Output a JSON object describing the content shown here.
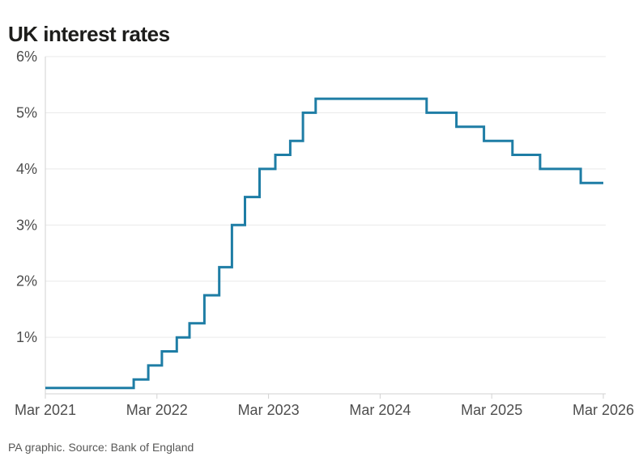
{
  "title": "UK interest rates",
  "source": "PA graphic. Source: Bank of England",
  "colors": {
    "line": "#1e7da5",
    "grid": "#e9e9e9",
    "axis": "#d2d2d2",
    "tick_label": "#4d4d4d",
    "title_text": "#1d1d1b",
    "footer_text": "#575756",
    "background": "#ffffff"
  },
  "chart_data": {
    "type": "line",
    "step": "after",
    "title": "UK interest rates",
    "xlabel": "",
    "ylabel": "",
    "grid": "horizontal",
    "legend": "none",
    "ylim": [
      0,
      6
    ],
    "y_ticks": [
      1,
      2,
      3,
      4,
      5,
      6
    ],
    "y_tick_labels": [
      "1%",
      "2%",
      "3%",
      "4%",
      "5%",
      "6%"
    ],
    "x_tick_labels": [
      "Mar 2021",
      "Mar 2022",
      "Mar 2023",
      "Mar 2024",
      "Mar 2025",
      "Mar 2026"
    ],
    "x_range": [
      "2021-03-01",
      "2026-03-01"
    ],
    "series": [
      {
        "name": "UK interest rate (%)",
        "points": [
          {
            "date": "2021-03-01",
            "rate": 0.1
          },
          {
            "date": "2021-12-16",
            "rate": 0.25
          },
          {
            "date": "2022-02-03",
            "rate": 0.5
          },
          {
            "date": "2022-03-17",
            "rate": 0.75
          },
          {
            "date": "2022-05-05",
            "rate": 1.0
          },
          {
            "date": "2022-06-16",
            "rate": 1.25
          },
          {
            "date": "2022-08-04",
            "rate": 1.75
          },
          {
            "date": "2022-09-22",
            "rate": 2.25
          },
          {
            "date": "2022-11-03",
            "rate": 3.0
          },
          {
            "date": "2022-12-15",
            "rate": 3.5
          },
          {
            "date": "2023-02-02",
            "rate": 4.0
          },
          {
            "date": "2023-03-23",
            "rate": 4.25
          },
          {
            "date": "2023-05-11",
            "rate": 4.5
          },
          {
            "date": "2023-06-22",
            "rate": 5.0
          },
          {
            "date": "2023-08-03",
            "rate": 5.25
          },
          {
            "date": "2024-08-01",
            "rate": 5.0
          },
          {
            "date": "2024-11-07",
            "rate": 4.75
          },
          {
            "date": "2025-02-06",
            "rate": 4.5
          },
          {
            "date": "2025-05-08",
            "rate": 4.25
          },
          {
            "date": "2025-08-07",
            "rate": 4.0
          },
          {
            "date": "2025-12-18",
            "rate": 3.75
          },
          {
            "date": "2026-03-01",
            "rate": 3.75
          }
        ]
      }
    ]
  }
}
